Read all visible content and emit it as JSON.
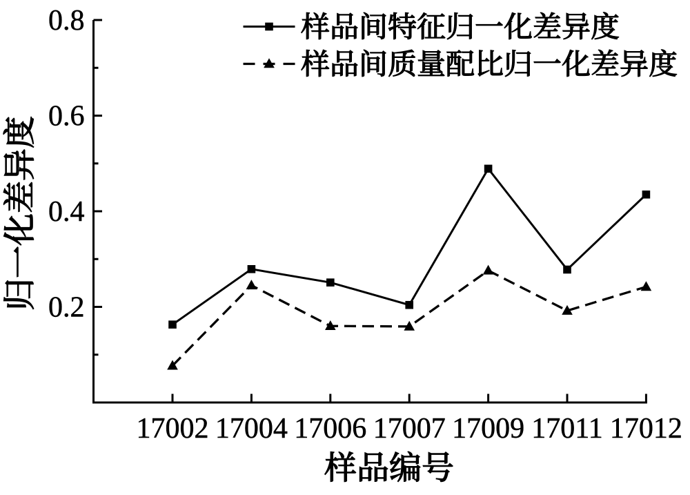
{
  "figure": {
    "background_color": "#ffffff",
    "ink_color": "#000000"
  },
  "chart_data": {
    "type": "line",
    "categories": [
      "17002",
      "17004",
      "17006",
      "17007",
      "17009",
      "17011",
      "17012"
    ],
    "series": [
      {
        "name": "样品间特征归一化差异度",
        "values": [
          0.163,
          0.279,
          0.251,
          0.204,
          0.489,
          0.278,
          0.435
        ],
        "line_style": "solid",
        "marker": "square",
        "color": "#000000"
      },
      {
        "name": "样品间质量配比归一化差异度",
        "values": [
          0.077,
          0.245,
          0.16,
          0.159,
          0.276,
          0.192,
          0.242
        ],
        "line_style": "dashed",
        "marker": "triangle",
        "color": "#000000"
      }
    ],
    "xlabel": "样品编号",
    "ylabel": "归一化差异度",
    "ylim": [
      0,
      0.8
    ],
    "ytick_labels": [
      "0.2",
      "0.4",
      "0.6",
      "0.8"
    ],
    "ytick_values": [
      0.2,
      0.4,
      0.6,
      0.8
    ],
    "ytick_minor_values": [
      0.1,
      0.3,
      0.5,
      0.7
    ],
    "grid": false,
    "legend_position": "upper-right-inside"
  }
}
